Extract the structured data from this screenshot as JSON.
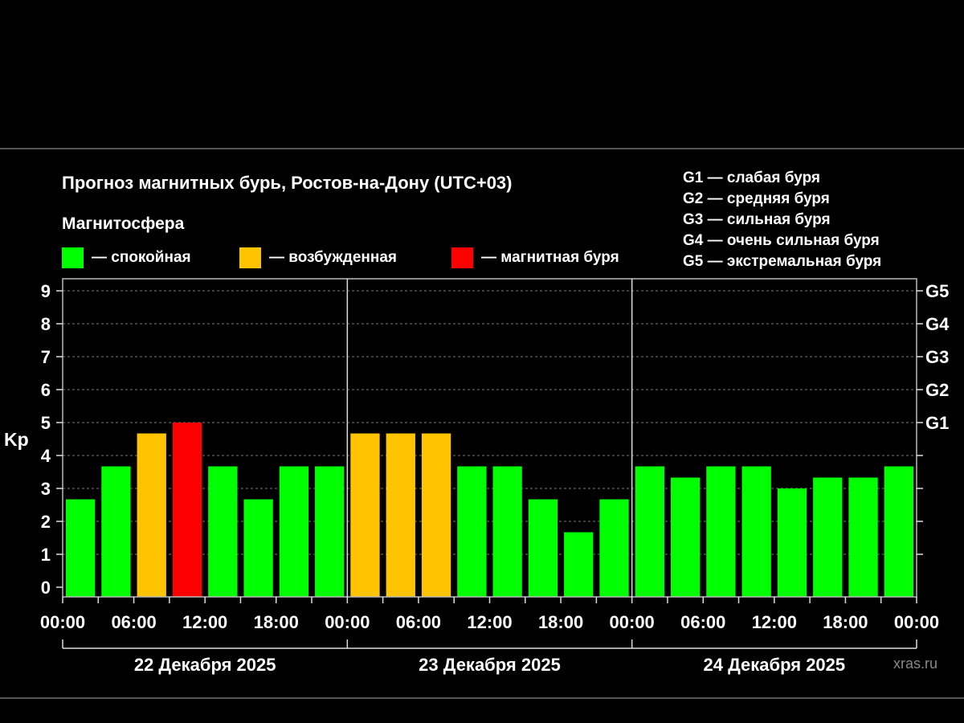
{
  "chart_data": {
    "type": "bar",
    "title": "Прогноз магнитных бурь, Ростов-на-Дону (UTC+03)",
    "ylabel": "Kp",
    "ylim": [
      0,
      9
    ],
    "yticks": [
      "0",
      "1",
      "2",
      "3",
      "4",
      "5",
      "6",
      "7",
      "8",
      "9"
    ],
    "right_ticks": [
      {
        "kp": 5,
        "label": "G1"
      },
      {
        "kp": 6,
        "label": "G2"
      },
      {
        "kp": 7,
        "label": "G3"
      },
      {
        "kp": 8,
        "label": "G4"
      },
      {
        "kp": 9,
        "label": "G5"
      }
    ],
    "grid": true,
    "x_tick_labels": [
      "00:00",
      "06:00",
      "12:00",
      "18:00",
      "00:00",
      "06:00",
      "12:00",
      "18:00",
      "00:00",
      "06:00",
      "12:00",
      "18:00",
      "00:00"
    ],
    "days": [
      "22 Декабря 2025",
      "23 Декабря 2025",
      "24 Декабря 2025"
    ],
    "values": [
      2.67,
      3.67,
      4.67,
      5.0,
      3.67,
      2.67,
      3.67,
      3.67,
      4.67,
      4.67,
      4.67,
      3.67,
      3.67,
      2.67,
      1.67,
      2.67,
      3.67,
      3.33,
      3.67,
      3.67,
      3.0,
      3.33,
      3.33,
      3.67
    ],
    "levels": [
      "quiet",
      "quiet",
      "excited",
      "storm",
      "quiet",
      "quiet",
      "quiet",
      "quiet",
      "excited",
      "excited",
      "excited",
      "quiet",
      "quiet",
      "quiet",
      "quiet",
      "quiet",
      "quiet",
      "quiet",
      "quiet",
      "quiet",
      "quiet",
      "quiet",
      "quiet",
      "quiet"
    ]
  },
  "magnetosphere": {
    "label": "Магнитосфера",
    "legend": [
      {
        "key": "quiet",
        "text": "— спокойная",
        "color": "#00ff00"
      },
      {
        "key": "excited",
        "text": "— возбужденная",
        "color": "#ffc400"
      },
      {
        "key": "storm",
        "text": "— магнитная буря",
        "color": "#ff0000"
      }
    ]
  },
  "gscale": [
    "G1 — слабая буря",
    "G2 — средняя буря",
    "G3 — сильная буря",
    "G4 — очень сильная буря",
    "G5 — экстремальная буря"
  ],
  "watermark": "xras.ru"
}
